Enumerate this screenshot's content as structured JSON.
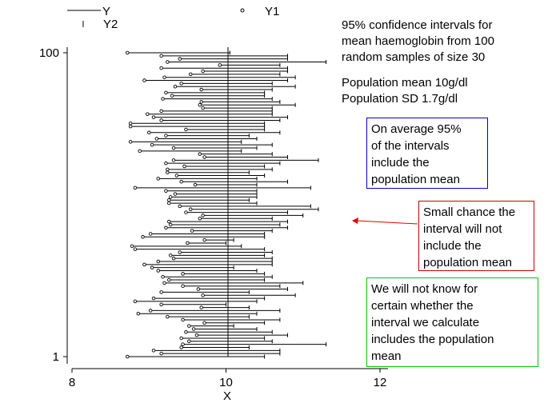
{
  "chart_data": {
    "type": "scatter",
    "xlabel": "X",
    "x_ticks": [
      8,
      10,
      12
    ],
    "y_ticks": [
      1,
      100
    ],
    "xlim": [
      8,
      12
    ],
    "ylim": [
      1,
      100
    ],
    "population_mean_line_x": 10,
    "legend": [
      {
        "name": "Y",
        "marker": "line"
      },
      {
        "name": "Y1",
        "marker": "circle"
      },
      {
        "name": "Y2",
        "marker": "tick"
      }
    ],
    "legend_placement": "top-left",
    "series": [
      {
        "name": "Y1",
        "description": "lower confidence limit",
        "values": [
          8.72,
          9.16,
          9.06,
          9.42,
          9.44,
          9.52,
          9.42,
          9.62,
          9.48,
          9.58,
          9.52,
          9.72,
          9.44,
          9.24,
          8.86,
          9.02,
          9.68,
          9.16,
          8.82,
          9.06,
          9.7,
          9.16,
          9.64,
          9.44,
          9.2,
          9.26,
          9.18,
          9.44,
          9.12,
          9.04,
          8.94,
          9.12,
          9.32,
          9.28,
          9.4,
          8.82,
          8.78,
          9.5,
          9.72,
          8.92,
          9.02,
          9.56,
          9.22,
          9.28,
          9.26,
          9.66,
          9.7,
          9.48,
          9.54,
          9.4,
          9.26,
          9.26,
          9.28,
          9.34,
          9.22,
          8.82,
          9.6,
          9.42,
          9.12,
          9.36,
          9.24,
          9.24,
          9.46,
          9.22,
          9.32,
          9.72,
          9.66,
          8.88,
          9.32,
          9.04,
          8.76,
          9.1,
          9.22,
          9.0,
          9.48,
          8.76,
          8.76,
          9.16,
          9.06,
          8.98,
          9.16,
          9.7,
          9.66,
          9.68,
          9.18,
          9.3,
          9.22,
          9.68,
          9.34,
          9.42,
          8.94,
          9.2,
          9.54,
          9.7,
          9.16,
          9.92,
          9.24,
          9.4,
          9.16,
          8.72
        ]
      },
      {
        "name": "Y2",
        "description": "upper confidence limit",
        "values": [
          10.5,
          10.7,
          10.7,
          10.3,
          11.3,
          10.6,
          10.5,
          10.8,
          10.6,
          10.4,
          10.1,
          10.5,
          10.7,
          10.3,
          10.4,
          10.7,
          10.3,
          10.0,
          10.4,
          10.5,
          10.9,
          10.3,
          10.8,
          10.7,
          11.0,
          10.5,
          10.6,
          10.5,
          10.4,
          10.1,
          10.6,
          10.6,
          10.6,
          10.5,
          10.6,
          10.5,
          10.2,
          10.0,
          10.1,
          10.5,
          10.5,
          10.6,
          10.8,
          10.7,
          10.8,
          10.6,
          11.0,
          10.8,
          11.2,
          11.1,
          10.4,
          10.3,
          10.4,
          10.4,
          10.4,
          11.1,
          10.4,
          10.8,
          10.4,
          10.5,
          10.3,
          10.6,
          10.5,
          10.7,
          11.2,
          10.8,
          10.6,
          10.2,
          10.4,
          10.6,
          10.2,
          10.4,
          10.3,
          10.7,
          10.5,
          10.5,
          10.5,
          10.7,
          10.8,
          10.6,
          10.6,
          10.6,
          10.9,
          10.7,
          10.6,
          10.5,
          10.5,
          10.6,
          10.9,
          10.6,
          10.8,
          10.9,
          10.7,
          10.8,
          10.8,
          10.7,
          11.3,
          10.8,
          10.8,
          10.05
        ]
      },
      {
        "name": "Y",
        "description": "sample number, 1 to 100 from bottom to top"
      }
    ]
  },
  "annotations": {
    "title": "95% confidence intervals for\nmean haemoglobin from 100\nrandom samples of size 30",
    "population": "Population mean 10g/dl\nPopulation SD 1.7g/dl",
    "blue_box": "On average 95%\nof the intervals\ninclude the\npopulation mean",
    "red_box": "Small chance the\ninterval will not\ninclude the\npopulation mean",
    "green_box": "We will not know for\ncertain whether the\ninterval we calculate\nincludes the population\nmean"
  },
  "colors": {
    "blue_box": "#0000cc",
    "red_box": "#cc0000",
    "green_box": "#00cc00",
    "arrow": "#e00000"
  }
}
